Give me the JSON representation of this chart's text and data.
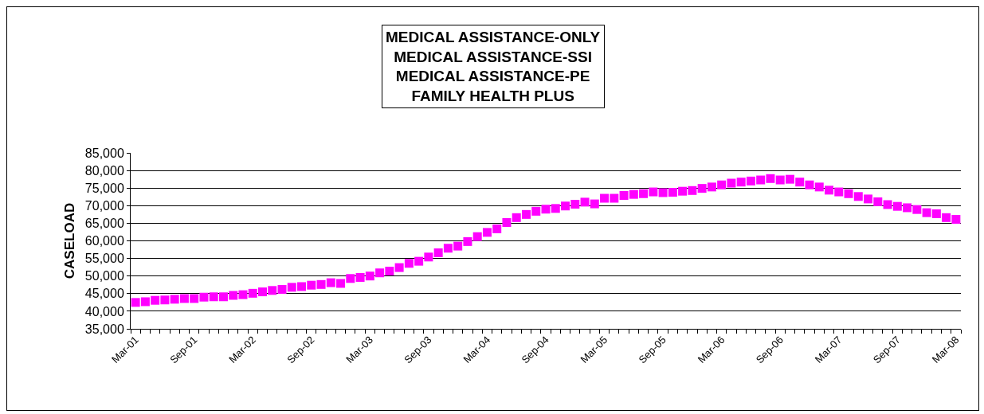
{
  "chart_data": {
    "type": "scatter",
    "title": "MEDICAL ASSISTANCE-ONLY\nMEDICAL ASSISTANCE-SSI\nMEDICAL ASSISTANCE-PE\nFAMILY HEALTH PLUS",
    "ylabel": "CASELOAD",
    "categories": [
      "Mar-01",
      null,
      null,
      null,
      null,
      null,
      "Sep-01",
      null,
      null,
      null,
      null,
      null,
      "Mar-02",
      null,
      null,
      null,
      null,
      null,
      "Sep-02",
      null,
      null,
      null,
      null,
      null,
      "Mar-03",
      null,
      null,
      null,
      null,
      null,
      "Sep-03",
      null,
      null,
      null,
      null,
      null,
      "Mar-04",
      null,
      null,
      null,
      null,
      null,
      "Sep-04",
      null,
      null,
      null,
      null,
      null,
      "Mar-05",
      null,
      null,
      null,
      null,
      null,
      "Sep-05",
      null,
      null,
      null,
      null,
      null,
      "Mar-06",
      null,
      null,
      null,
      null,
      null,
      "Sep-06",
      null,
      null,
      null,
      null,
      null,
      "Mar-07",
      null,
      null,
      null,
      null,
      null,
      "Sep-07",
      null,
      null,
      null,
      null,
      null,
      "Mar-08"
    ],
    "series": [
      {
        "color": "#ff00ff",
        "values": [
          42500,
          42700,
          43100,
          43200,
          43400,
          43600,
          43600,
          44000,
          44100,
          44100,
          44500,
          44700,
          45100,
          45500,
          45900,
          46200,
          46800,
          47000,
          47400,
          47600,
          48100,
          47900,
          49300,
          49600,
          50000,
          50900,
          51400,
          52400,
          53600,
          54200,
          55400,
          56600,
          57900,
          58500,
          59800,
          61200,
          62400,
          63400,
          65200,
          66600,
          67500,
          68400,
          69000,
          69200,
          69900,
          70400,
          71000,
          70500,
          72100,
          72100,
          72900,
          73200,
          73400,
          73900,
          73700,
          73800,
          74100,
          74300,
          74900,
          75300,
          75900,
          76400,
          76700,
          77000,
          77300,
          77700,
          77300,
          77500,
          76700,
          75900,
          75300,
          74400,
          73900,
          73400,
          72600,
          71900,
          71100,
          70300,
          69800,
          69400,
          68900,
          68000,
          67700,
          66600,
          66100
        ]
      }
    ],
    "ylim": [
      35000,
      85000
    ],
    "yticks": [
      {
        "value": 35000,
        "label": "35,000"
      },
      {
        "value": 40000,
        "label": "40,000"
      },
      {
        "value": 45000,
        "label": "45,000"
      },
      {
        "value": 50000,
        "label": "50,000"
      },
      {
        "value": 55000,
        "label": "55,000"
      },
      {
        "value": 60000,
        "label": "60,000"
      },
      {
        "value": 65000,
        "label": "65,000"
      },
      {
        "value": 70000,
        "label": "70,000"
      },
      {
        "value": 75000,
        "label": "75,000"
      },
      {
        "value": 80000,
        "label": "80,000"
      },
      {
        "value": 85000,
        "label": "85,000"
      }
    ],
    "grid": "y",
    "marker": "square"
  }
}
